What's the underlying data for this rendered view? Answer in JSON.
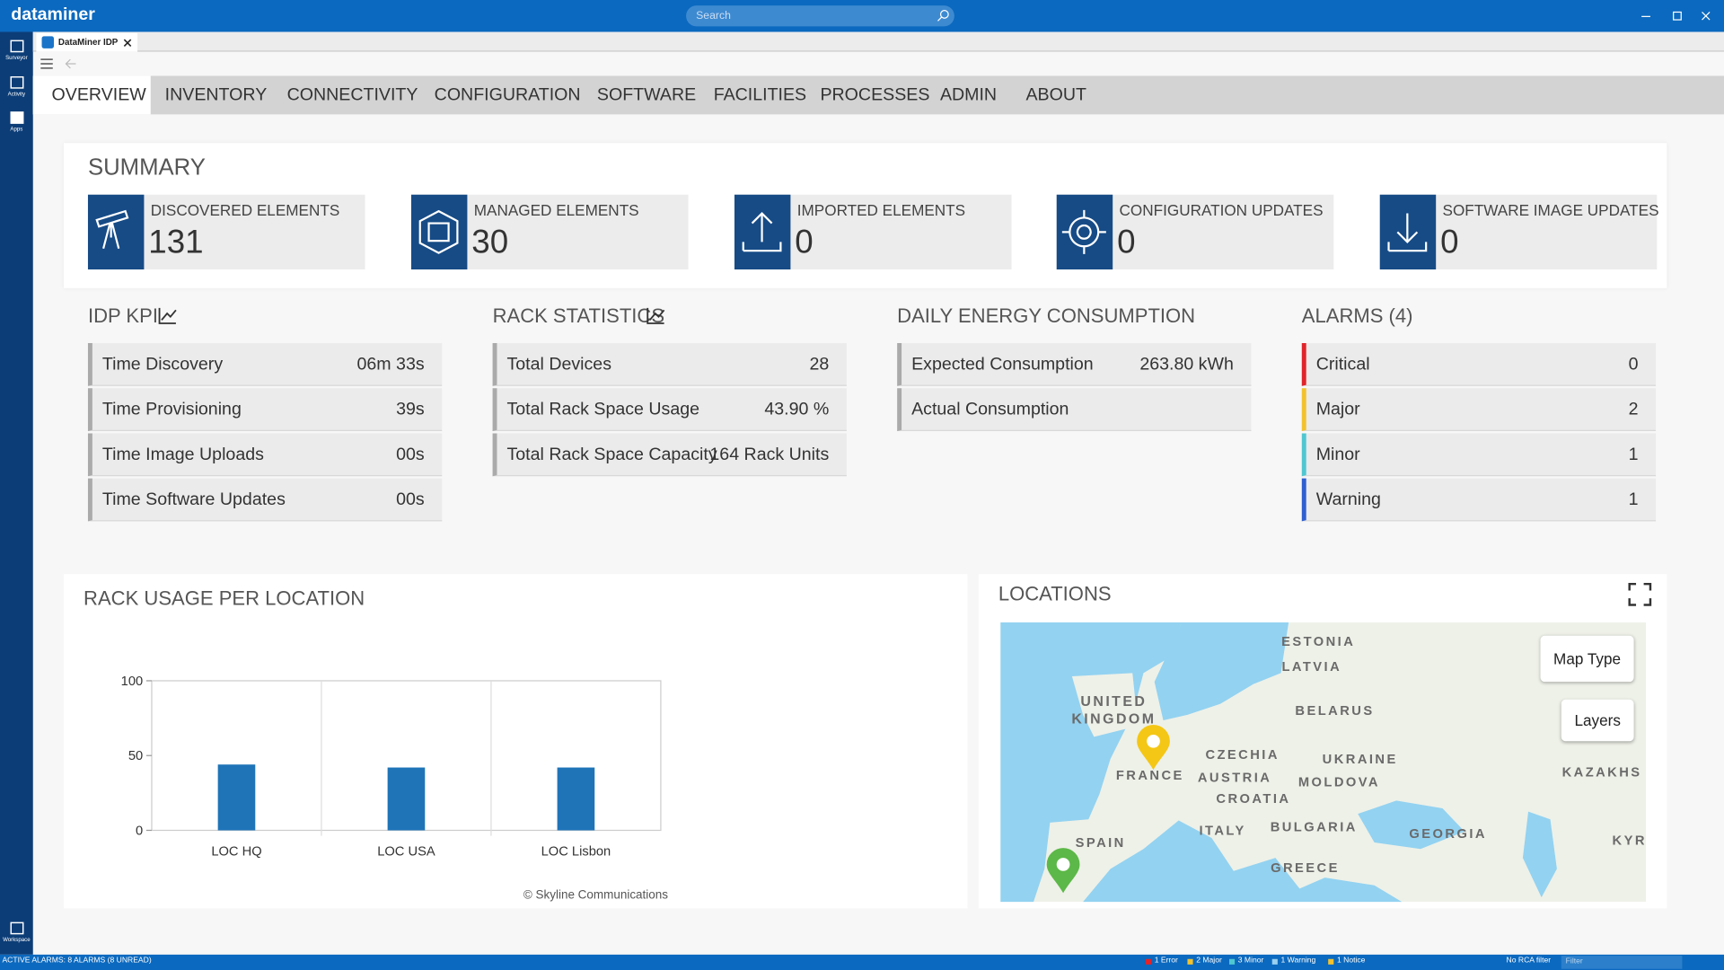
{
  "app": {
    "brand": "dataminer",
    "search_placeholder": "Search",
    "tab": "DataMiner IDP"
  },
  "sidebar": [
    "Surveyor",
    "Activity",
    "Apps",
    "Workspace"
  ],
  "nav": [
    "OVERVIEW",
    "INVENTORY",
    "CONNECTIVITY",
    "CONFIGURATION",
    "SOFTWARE",
    "FACILITIES",
    "PROCESSES",
    "ADMIN",
    "ABOUT"
  ],
  "summary": {
    "title": "SUMMARY",
    "cards": [
      {
        "label": "DISCOVERED ELEMENTS",
        "value": 131
      },
      {
        "label": "MANAGED ELEMENTS",
        "value": 30
      },
      {
        "label": "IMPORTED ELEMENTS",
        "value": 0
      },
      {
        "label": "CONFIGURATION UPDATES",
        "value": 0
      },
      {
        "label": "SOFTWARE IMAGE UPDATES",
        "value": 0
      }
    ]
  },
  "panels": [
    {
      "title": "IDP KPI",
      "rows": [
        {
          "label": "Time Discovery",
          "value": "06m 33s"
        },
        {
          "label": "Time Provisioning",
          "value": "39s"
        },
        {
          "label": "Time Image Uploads",
          "value": "00s"
        },
        {
          "label": "Time Software Updates",
          "value": "00s"
        }
      ]
    },
    {
      "title": "RACK STATISTICS",
      "rows": [
        {
          "label": "Total Devices",
          "value": 28
        },
        {
          "label": "Total Rack Space Usage",
          "value": "43.90 %"
        },
        {
          "label": "Total Rack Space Capacity",
          "value": "164 Rack Units"
        }
      ]
    },
    {
      "title": "DAILY ENERGY CONSUMPTION",
      "rows": [
        {
          "label": "Expected Consumption",
          "value": "263.80 kWh"
        },
        {
          "label": "Actual Consumption"
        }
      ]
    },
    {
      "title": "ALARMS (4)",
      "rows": [
        {
          "label": "Critical",
          "value": 0,
          "color": "#e0242b"
        },
        {
          "label": "Major",
          "value": 2,
          "color": "#f2c22e"
        },
        {
          "label": "Minor",
          "value": 1,
          "color": "#4fc7d0"
        },
        {
          "label": "Warning",
          "value": 1,
          "color": "#2f5fd0"
        }
      ]
    }
  ],
  "rack_usage": {
    "type": "bar",
    "title": "RACK USAGE PER LOCATION",
    "categories": [
      "LOC HQ",
      "LOC USA",
      "LOC Lisbon"
    ],
    "values": [
      44,
      42,
      42
    ],
    "color": "#1f74b8",
    "ylim": [
      0,
      100
    ],
    "yticks": [
      0,
      50,
      100
    ],
    "credit": "© Skyline Communications"
  },
  "locations": {
    "title": "LOCATIONS",
    "buttons": [
      "Map Type",
      "Layers"
    ],
    "labels": [
      "ESTONIA",
      "LATVIA",
      "UNITED KINGDOM",
      "BELARUS",
      "CZECHIA",
      "UKRAINE",
      "AUSTRIA",
      "MOLDOVA",
      "FRANCE",
      "CROATIA",
      "KAZAKHS",
      "ITALY",
      "BULGARIA",
      "GEORGIA",
      "SPAIN",
      "KYR",
      "GREECE"
    ]
  },
  "status_bar": {
    "left": "ACTIVE ALARMS: 8 ALARMS (8 UNREAD)",
    "items": [
      "1 Error",
      "2 Major",
      "3 Minor",
      "1 Warning",
      "1 Notice"
    ],
    "rca": "No RCA filter",
    "filter_placeholder": "Filter"
  }
}
